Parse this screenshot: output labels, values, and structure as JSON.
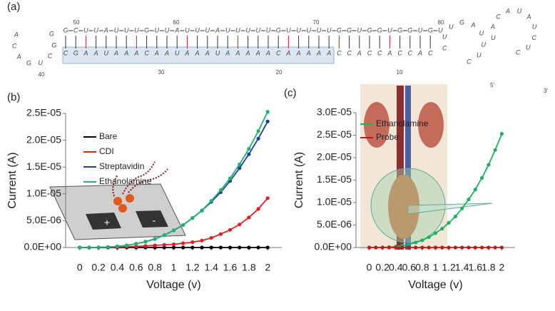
{
  "panel_a": {
    "label": "(a)",
    "top_strand": "GCUUAUUUGUUAUUUAUUUUUGUUUUUGGUGGUGGUGU",
    "bottom_strand": "CGAAUAAACAAUAAAUAAAAACAAAAACCACCACCAC",
    "left_loop": "ACAGUCGG",
    "right_loop": "CUUGAUUUCUACAUAUCUC",
    "numbers": [
      "40",
      "50",
      "60",
      "70",
      "80",
      "30",
      "20",
      "10",
      "5'",
      "3'"
    ]
  },
  "chart_data": [
    {
      "type": "line",
      "panel": "(b)",
      "x_label": "Voltage (v)",
      "y_label": "Current (A)",
      "x": [
        0,
        0.1,
        0.2,
        0.3,
        0.4,
        0.5,
        0.6,
        0.7,
        0.8,
        0.9,
        1,
        1.1,
        1.2,
        1.3,
        1.4,
        1.5,
        1.6,
        1.7,
        1.8,
        1.9,
        2
      ],
      "xlim": [
        -0.15,
        2.15
      ],
      "xticks": [
        0,
        0.2,
        0.4,
        0.6,
        0.8,
        1,
        1.2,
        1.4,
        1.6,
        1.8,
        2
      ],
      "ylim": [
        0,
        2.5e-05
      ],
      "yticks": [
        {
          "value": 0,
          "label": "0.0E+00"
        },
        {
          "value": 5e-06,
          "label": "5.0E-06"
        },
        {
          "value": 1e-05,
          "label": "1.0E-05"
        },
        {
          "value": 1.5e-05,
          "label": "1.5E-05"
        },
        {
          "value": 2e-05,
          "label": "2.0E-05"
        },
        {
          "value": 2.5e-05,
          "label": "2.5E-05"
        }
      ],
      "grid": false,
      "legend": "top-left",
      "series": [
        {
          "name": "Bare",
          "color": "#000000",
          "values": [
            0,
            0,
            0,
            0,
            0,
            0,
            0,
            0,
            0,
            0,
            0,
            0,
            0,
            0,
            0,
            0,
            0,
            0,
            0,
            0,
            0
          ]
        },
        {
          "name": "CDI",
          "color": "#e02020",
          "values": [
            0,
            0,
            0,
            5e-08,
            1e-07,
            1.5e-07,
            2e-07,
            3e-07,
            4e-07,
            5e-07,
            6e-07,
            8e-07,
            1e-06,
            1.3e-06,
            1.8e-06,
            2.5e-06,
            3.3e-06,
            4.3e-06,
            5.6e-06,
            7.2e-06,
            9.2e-06
          ]
        },
        {
          "name": "Streptavidin",
          "color": "#1f3fa0",
          "values": [
            0,
            3e-09,
            2.5e-08,
            9e-08,
            2e-07,
            4e-07,
            7e-07,
            1.1e-06,
            1.6e-06,
            2.3e-06,
            3.2e-06,
            4.2e-06,
            5.5e-06,
            6.9e-06,
            8.5e-06,
            1.03e-05,
            1.24e-05,
            1.48e-05,
            1.74e-05,
            2.03e-05,
            2.35e-05
          ]
        },
        {
          "name": "Ethanolamine",
          "color": "#20b070",
          "values": [
            0,
            3e-09,
            2.5e-08,
            9e-08,
            2e-07,
            4e-07,
            7e-07,
            1.1e-06,
            1.6e-06,
            2.3e-06,
            3.2e-06,
            4.2e-06,
            5.5e-06,
            6.9e-06,
            8.7e-06,
            1.07e-05,
            1.29e-05,
            1.55e-05,
            1.84e-05,
            2.17e-05,
            2.53e-05
          ]
        }
      ]
    },
    {
      "type": "line",
      "panel": "(c)",
      "x_label": "Voltage (v)",
      "y_label": "Current (A)",
      "x": [
        0,
        0.1,
        0.2,
        0.3,
        0.4,
        0.5,
        0.6,
        0.7,
        0.8,
        0.9,
        1,
        1.1,
        1.2,
        1.3,
        1.4,
        1.5,
        1.6,
        1.7,
        1.8,
        1.9,
        2
      ],
      "xlim": [
        -0.2,
        2.2
      ],
      "xticks": [
        0,
        0.2,
        0.4,
        0.6,
        0.8,
        1,
        1.2,
        1.4,
        1.6,
        1.8,
        2
      ],
      "ylim": [
        0,
        3e-05
      ],
      "yticks": [
        {
          "value": 0,
          "label": "0.0E+00"
        },
        {
          "value": 5e-06,
          "label": "5.0E-06"
        },
        {
          "value": 1e-05,
          "label": "1.0E-05"
        },
        {
          "value": 1.5e-05,
          "label": "1.5E-05"
        },
        {
          "value": 2e-05,
          "label": "2.0E-05"
        },
        {
          "value": 2.5e-05,
          "label": "2.5E-05"
        },
        {
          "value": 3e-05,
          "label": "3.0E-05"
        }
      ],
      "grid": false,
      "legend": "top-left",
      "series": [
        {
          "name": "Ethanolamine",
          "color": "#20b060",
          "values": [
            0,
            3e-09,
            2.5e-08,
            9e-08,
            2e-07,
            4e-07,
            7e-07,
            1.1e-06,
            1.6e-06,
            2.3e-06,
            3.2e-06,
            4.2e-06,
            5.5e-06,
            6.9e-06,
            8.7e-06,
            1.07e-05,
            1.29e-05,
            1.55e-05,
            1.84e-05,
            2.17e-05,
            2.53e-05
          ]
        },
        {
          "name": "Probe",
          "color": "#c01818",
          "values": [
            0,
            0,
            0,
            0,
            0,
            0,
            0,
            0,
            0,
            0,
            0,
            0,
            0,
            0,
            0,
            0,
            0,
            0,
            0,
            0,
            0
          ]
        }
      ]
    }
  ]
}
